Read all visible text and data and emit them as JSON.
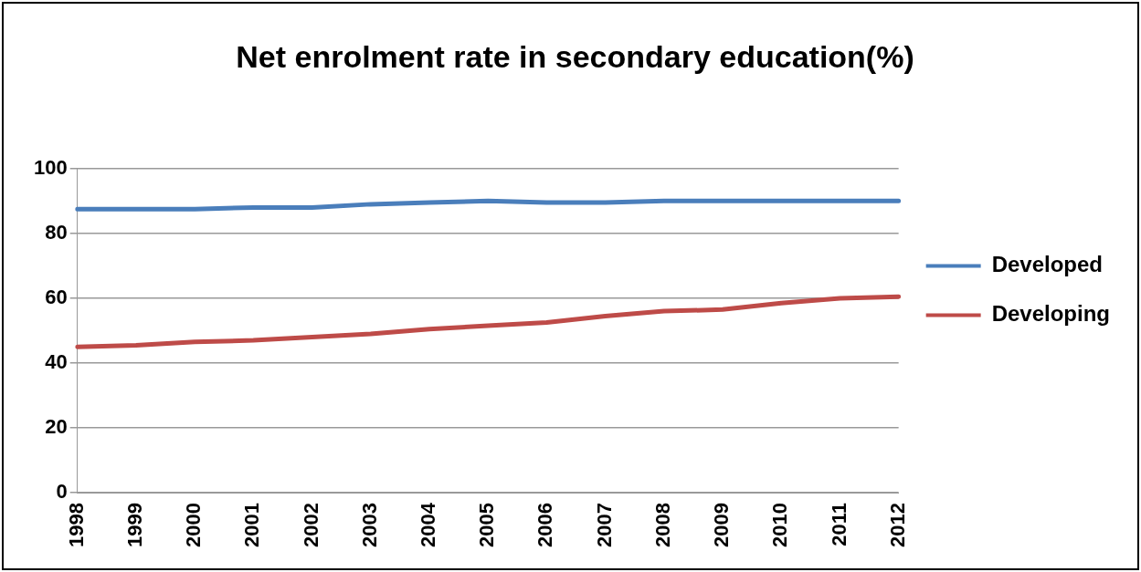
{
  "chart_data": {
    "type": "line",
    "title": "Net enrolment rate in secondary education(%)",
    "categories": [
      "1998",
      "1999",
      "2000",
      "2001",
      "2002",
      "2003",
      "2004",
      "2005",
      "2006",
      "2007",
      "2008",
      "2009",
      "2010",
      "2011",
      "2012"
    ],
    "series": [
      {
        "name": "Developed",
        "color": "#4a7ebb",
        "values": [
          87.5,
          87.5,
          87.5,
          88,
          88,
          89,
          89.5,
          90,
          89.5,
          89.5,
          90,
          90,
          90,
          90,
          90
        ]
      },
      {
        "name": "Developing",
        "color": "#be4b48",
        "values": [
          45,
          45.5,
          46.5,
          47,
          48,
          49,
          50.5,
          51.5,
          52.5,
          54.5,
          56,
          56.5,
          58.5,
          60,
          60.5
        ]
      }
    ],
    "ylim": [
      0,
      100
    ],
    "yticks": [
      0,
      20,
      40,
      60,
      80,
      100
    ],
    "grid": "y",
    "legend": "right",
    "marker": "none"
  }
}
